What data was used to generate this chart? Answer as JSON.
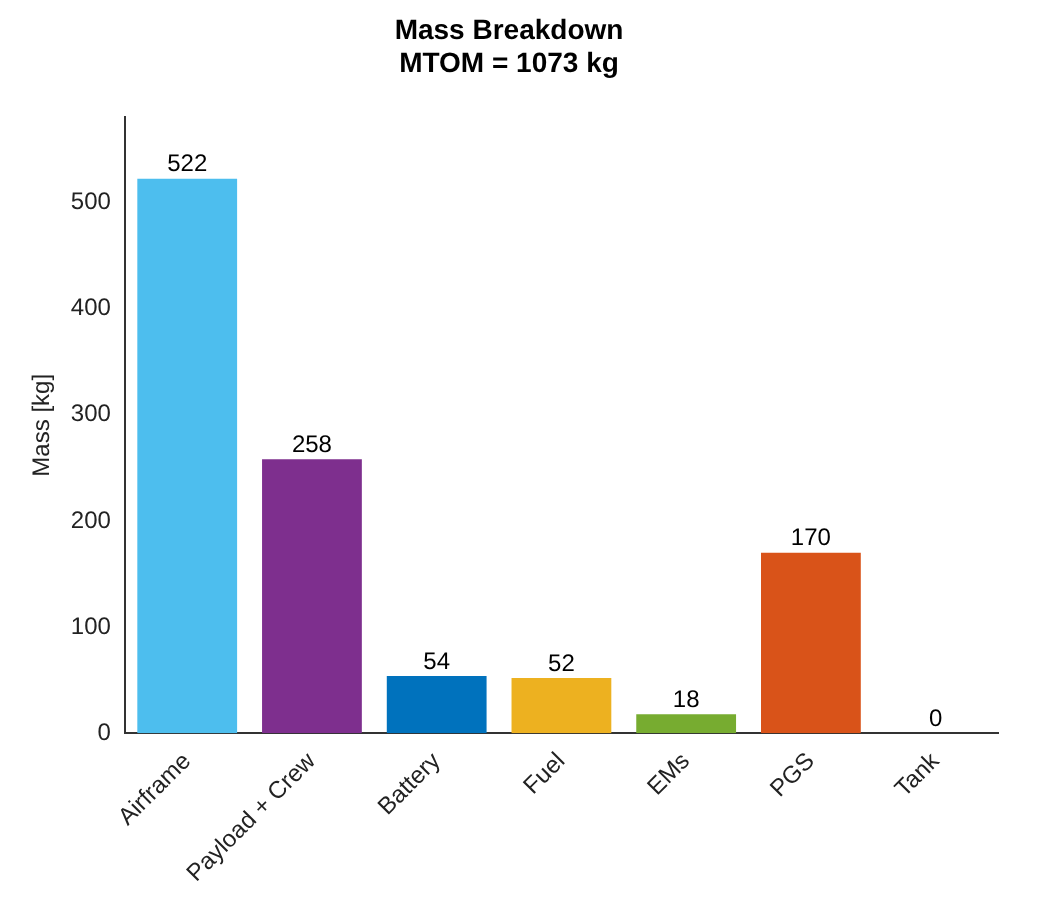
{
  "chart_data": {
    "type": "bar",
    "title": "Mass Breakdown\nMTOM = 1073 kg",
    "ylabel": "Mass [kg]",
    "categories": [
      "Airframe",
      "Payload + Crew",
      "Battery",
      "Fuel",
      "EMs",
      "PGS",
      "Tank"
    ],
    "values": [
      522,
      258,
      54,
      52,
      18,
      170,
      0
    ],
    "colors": [
      "#4dbeee",
      "#7e2f8e",
      "#0072bd",
      "#edb120",
      "#77ac30",
      "#d95319",
      "#a2142f"
    ],
    "ylim": [
      0,
      580
    ],
    "yticks": [
      0,
      100,
      200,
      300,
      400,
      500
    ],
    "grid": false,
    "data_labels": true
  }
}
